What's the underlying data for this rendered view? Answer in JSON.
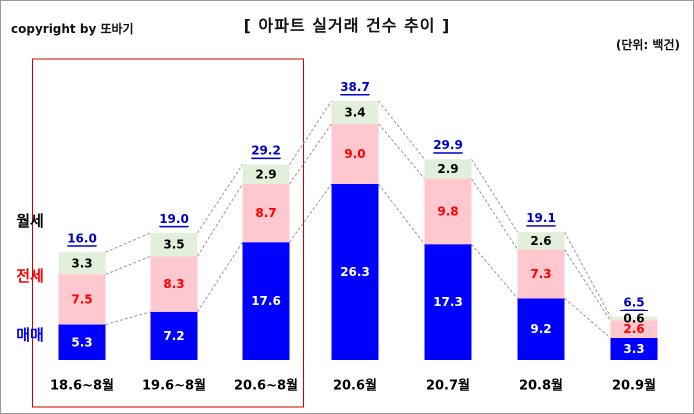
{
  "header": {
    "copyright": "copyright by 또바기",
    "title": "[ 아파트 실거래 건수 추이 ]",
    "unit": "(단위: 백건)"
  },
  "chart_data": {
    "type": "bar",
    "stacked": true,
    "categories": [
      "18.6~8월",
      "19.6~8월",
      "20.6~8월",
      "20.6월",
      "20.7월",
      "20.8월",
      "20.9월"
    ],
    "series": [
      {
        "name": "매매",
        "values": [
          5.3,
          7.2,
          17.6,
          26.3,
          17.3,
          9.2,
          3.3
        ],
        "color": "#0000ff",
        "label_color": "#ffffff"
      },
      {
        "name": "전세",
        "values": [
          7.5,
          8.3,
          8.7,
          9.0,
          9.8,
          7.3,
          2.6
        ],
        "color": "#ffc7ce",
        "label_color": "#ff0000"
      },
      {
        "name": "월세",
        "values": [
          3.3,
          3.5,
          2.9,
          3.4,
          2.9,
          2.6,
          0.6
        ],
        "color": "#e2efda",
        "label_color": "#000000"
      }
    ],
    "totals": [
      16.0,
      19.0,
      29.2,
      38.7,
      29.9,
      19.1,
      6.5
    ],
    "total_label_color": "#0000cc",
    "ylim": [
      0,
      40
    ],
    "grid": false,
    "legend_labels_color": {
      "매매": "#0000ff",
      "전세": "#ff0000",
      "월세": "#000000"
    },
    "highlight_box": {
      "categories": [
        "18.6~8월",
        "19.6~8월",
        "20.6~8월"
      ],
      "color": "#cc0000"
    },
    "connector_color": "#999999"
  }
}
